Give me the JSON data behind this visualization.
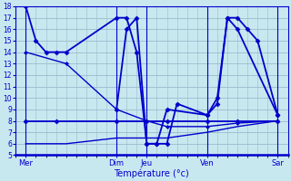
{
  "background_color": "#c8e8f0",
  "grid_color": "#99bbcc",
  "line_color": "#0000cc",
  "xlabel": "Température (°c)",
  "ylim": [
    5,
    18
  ],
  "yticks": [
    5,
    6,
    7,
    8,
    9,
    10,
    11,
    12,
    13,
    14,
    15,
    16,
    17,
    18
  ],
  "xlim": [
    0,
    27
  ],
  "day_labels": [
    "Mer",
    "Dim",
    "Jeu",
    "Ven",
    "Sar"
  ],
  "day_tick_pos": [
    1,
    10,
    13,
    19,
    26
  ],
  "day_sep_pos": [
    1,
    10,
    13,
    19,
    26
  ],
  "series": [
    {
      "x": [
        1,
        2,
        3,
        4,
        5,
        10,
        11,
        12,
        13,
        14,
        15,
        19,
        20,
        21,
        22,
        26
      ],
      "y": [
        18,
        15,
        14,
        14,
        14,
        17,
        17,
        14,
        6,
        6,
        9,
        8.5,
        10,
        17,
        16,
        8.5
      ],
      "style": "-",
      "marker": "D",
      "markersize": 2.5,
      "linewidth": 1.3
    },
    {
      "x": [
        10,
        11,
        12,
        13,
        14,
        15,
        16,
        19,
        20,
        21,
        22,
        23,
        24,
        26
      ],
      "y": [
        9,
        16,
        17,
        6,
        6,
        6,
        9.5,
        8.5,
        9.5,
        17,
        17,
        16,
        15,
        8.5
      ],
      "style": "-",
      "marker": "D",
      "markersize": 2.5,
      "linewidth": 1.3
    },
    {
      "x": [
        1,
        4,
        10,
        13,
        15,
        19,
        22,
        26
      ],
      "y": [
        8,
        8,
        8,
        8,
        8,
        8,
        8,
        8
      ],
      "style": "-",
      "marker": "D",
      "markersize": 2.5,
      "linewidth": 1.3
    },
    {
      "x": [
        1,
        5,
        10,
        13,
        15,
        19,
        22,
        26
      ],
      "y": [
        14,
        13,
        9,
        8,
        7.5,
        7.5,
        7.8,
        8
      ],
      "style": "-",
      "marker": "D",
      "markersize": 2.0,
      "linewidth": 1.0
    },
    {
      "x": [
        1,
        5,
        10,
        13,
        15,
        19,
        22,
        26
      ],
      "y": [
        6,
        6,
        6.5,
        6.5,
        6.5,
        7.0,
        7.5,
        8
      ],
      "style": "-",
      "marker": null,
      "markersize": 0,
      "linewidth": 1.0
    }
  ]
}
